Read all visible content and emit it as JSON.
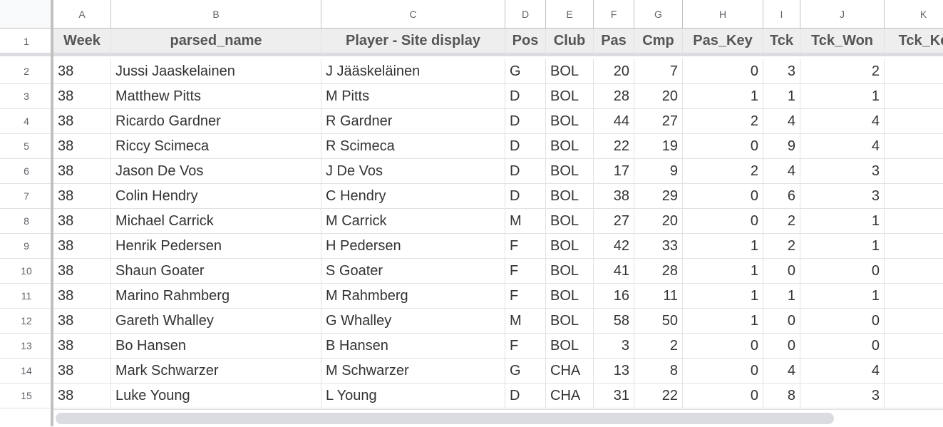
{
  "columns": [
    {
      "letter": "A",
      "header": "Week",
      "key": "week",
      "align": "left"
    },
    {
      "letter": "B",
      "header": "parsed_name",
      "key": "parsed_name",
      "align": "left"
    },
    {
      "letter": "C",
      "header": "Player - Site display",
      "key": "site_name",
      "align": "left"
    },
    {
      "letter": "D",
      "header": "Pos",
      "key": "pos",
      "align": "left"
    },
    {
      "letter": "E",
      "header": "Club",
      "key": "club",
      "align": "left"
    },
    {
      "letter": "F",
      "header": "Pas",
      "key": "pas",
      "align": "right"
    },
    {
      "letter": "G",
      "header": "Cmp",
      "key": "cmp",
      "align": "right"
    },
    {
      "letter": "H",
      "header": "Pas_Key",
      "key": "pas_key",
      "align": "right"
    },
    {
      "letter": "I",
      "header": "Tck",
      "key": "tck",
      "align": "right"
    },
    {
      "letter": "J",
      "header": "Tck_Won",
      "key": "tck_won",
      "align": "right"
    },
    {
      "letter": "K",
      "header": "Tck_Ke",
      "key": "tck_key",
      "align": "right"
    }
  ],
  "header_row_number": "1",
  "rows": [
    {
      "n": "2",
      "week": "38",
      "parsed_name": "Jussi Jaaskelainen",
      "site_name": "J Jääskeläinen",
      "pos": "G",
      "club": "BOL",
      "pas": "20",
      "cmp": "7",
      "pas_key": "0",
      "tck": "3",
      "tck_won": "2",
      "tck_key": ""
    },
    {
      "n": "3",
      "week": "38",
      "parsed_name": "Matthew Pitts",
      "site_name": "M Pitts",
      "pos": "D",
      "club": "BOL",
      "pas": "28",
      "cmp": "20",
      "pas_key": "1",
      "tck": "1",
      "tck_won": "1",
      "tck_key": ""
    },
    {
      "n": "4",
      "week": "38",
      "parsed_name": "Ricardo Gardner",
      "site_name": "R Gardner",
      "pos": "D",
      "club": "BOL",
      "pas": "44",
      "cmp": "27",
      "pas_key": "2",
      "tck": "4",
      "tck_won": "4",
      "tck_key": ""
    },
    {
      "n": "5",
      "week": "38",
      "parsed_name": "Riccy Scimeca",
      "site_name": "R Scimeca",
      "pos": "D",
      "club": "BOL",
      "pas": "22",
      "cmp": "19",
      "pas_key": "0",
      "tck": "9",
      "tck_won": "4",
      "tck_key": ""
    },
    {
      "n": "6",
      "week": "38",
      "parsed_name": "Jason De Vos",
      "site_name": "J De Vos",
      "pos": "D",
      "club": "BOL",
      "pas": "17",
      "cmp": "9",
      "pas_key": "2",
      "tck": "4",
      "tck_won": "3",
      "tck_key": ""
    },
    {
      "n": "7",
      "week": "38",
      "parsed_name": "Colin Hendry",
      "site_name": "C Hendry",
      "pos": "D",
      "club": "BOL",
      "pas": "38",
      "cmp": "29",
      "pas_key": "0",
      "tck": "6",
      "tck_won": "3",
      "tck_key": ""
    },
    {
      "n": "8",
      "week": "38",
      "parsed_name": "Michael Carrick",
      "site_name": "M Carrick",
      "pos": "M",
      "club": "BOL",
      "pas": "27",
      "cmp": "20",
      "pas_key": "0",
      "tck": "2",
      "tck_won": "1",
      "tck_key": ""
    },
    {
      "n": "9",
      "week": "38",
      "parsed_name": "Henrik Pedersen",
      "site_name": "H Pedersen",
      "pos": "F",
      "club": "BOL",
      "pas": "42",
      "cmp": "33",
      "pas_key": "1",
      "tck": "2",
      "tck_won": "1",
      "tck_key": ""
    },
    {
      "n": "10",
      "week": "38",
      "parsed_name": "Shaun Goater",
      "site_name": "S Goater",
      "pos": "F",
      "club": "BOL",
      "pas": "41",
      "cmp": "28",
      "pas_key": "1",
      "tck": "0",
      "tck_won": "0",
      "tck_key": ""
    },
    {
      "n": "11",
      "week": "38",
      "parsed_name": "Marino Rahmberg",
      "site_name": "M Rahmberg",
      "pos": "F",
      "club": "BOL",
      "pas": "16",
      "cmp": "11",
      "pas_key": "1",
      "tck": "1",
      "tck_won": "1",
      "tck_key": ""
    },
    {
      "n": "12",
      "week": "38",
      "parsed_name": "Gareth Whalley",
      "site_name": "G Whalley",
      "pos": "M",
      "club": "BOL",
      "pas": "58",
      "cmp": "50",
      "pas_key": "1",
      "tck": "0",
      "tck_won": "0",
      "tck_key": ""
    },
    {
      "n": "13",
      "week": "38",
      "parsed_name": "Bo Hansen",
      "site_name": "B Hansen",
      "pos": "F",
      "club": "BOL",
      "pas": "3",
      "cmp": "2",
      "pas_key": "0",
      "tck": "0",
      "tck_won": "0",
      "tck_key": ""
    },
    {
      "n": "14",
      "week": "38",
      "parsed_name": "Mark Schwarzer",
      "site_name": "M Schwarzer",
      "pos": "G",
      "club": "CHA",
      "pas": "13",
      "cmp": "8",
      "pas_key": "0",
      "tck": "4",
      "tck_won": "4",
      "tck_key": ""
    },
    {
      "n": "15",
      "week": "38",
      "parsed_name": "Luke Young",
      "site_name": "L Young",
      "pos": "D",
      "club": "CHA",
      "pas": "31",
      "cmp": "22",
      "pas_key": "0",
      "tck": "8",
      "tck_won": "3",
      "tck_key": ""
    }
  ]
}
